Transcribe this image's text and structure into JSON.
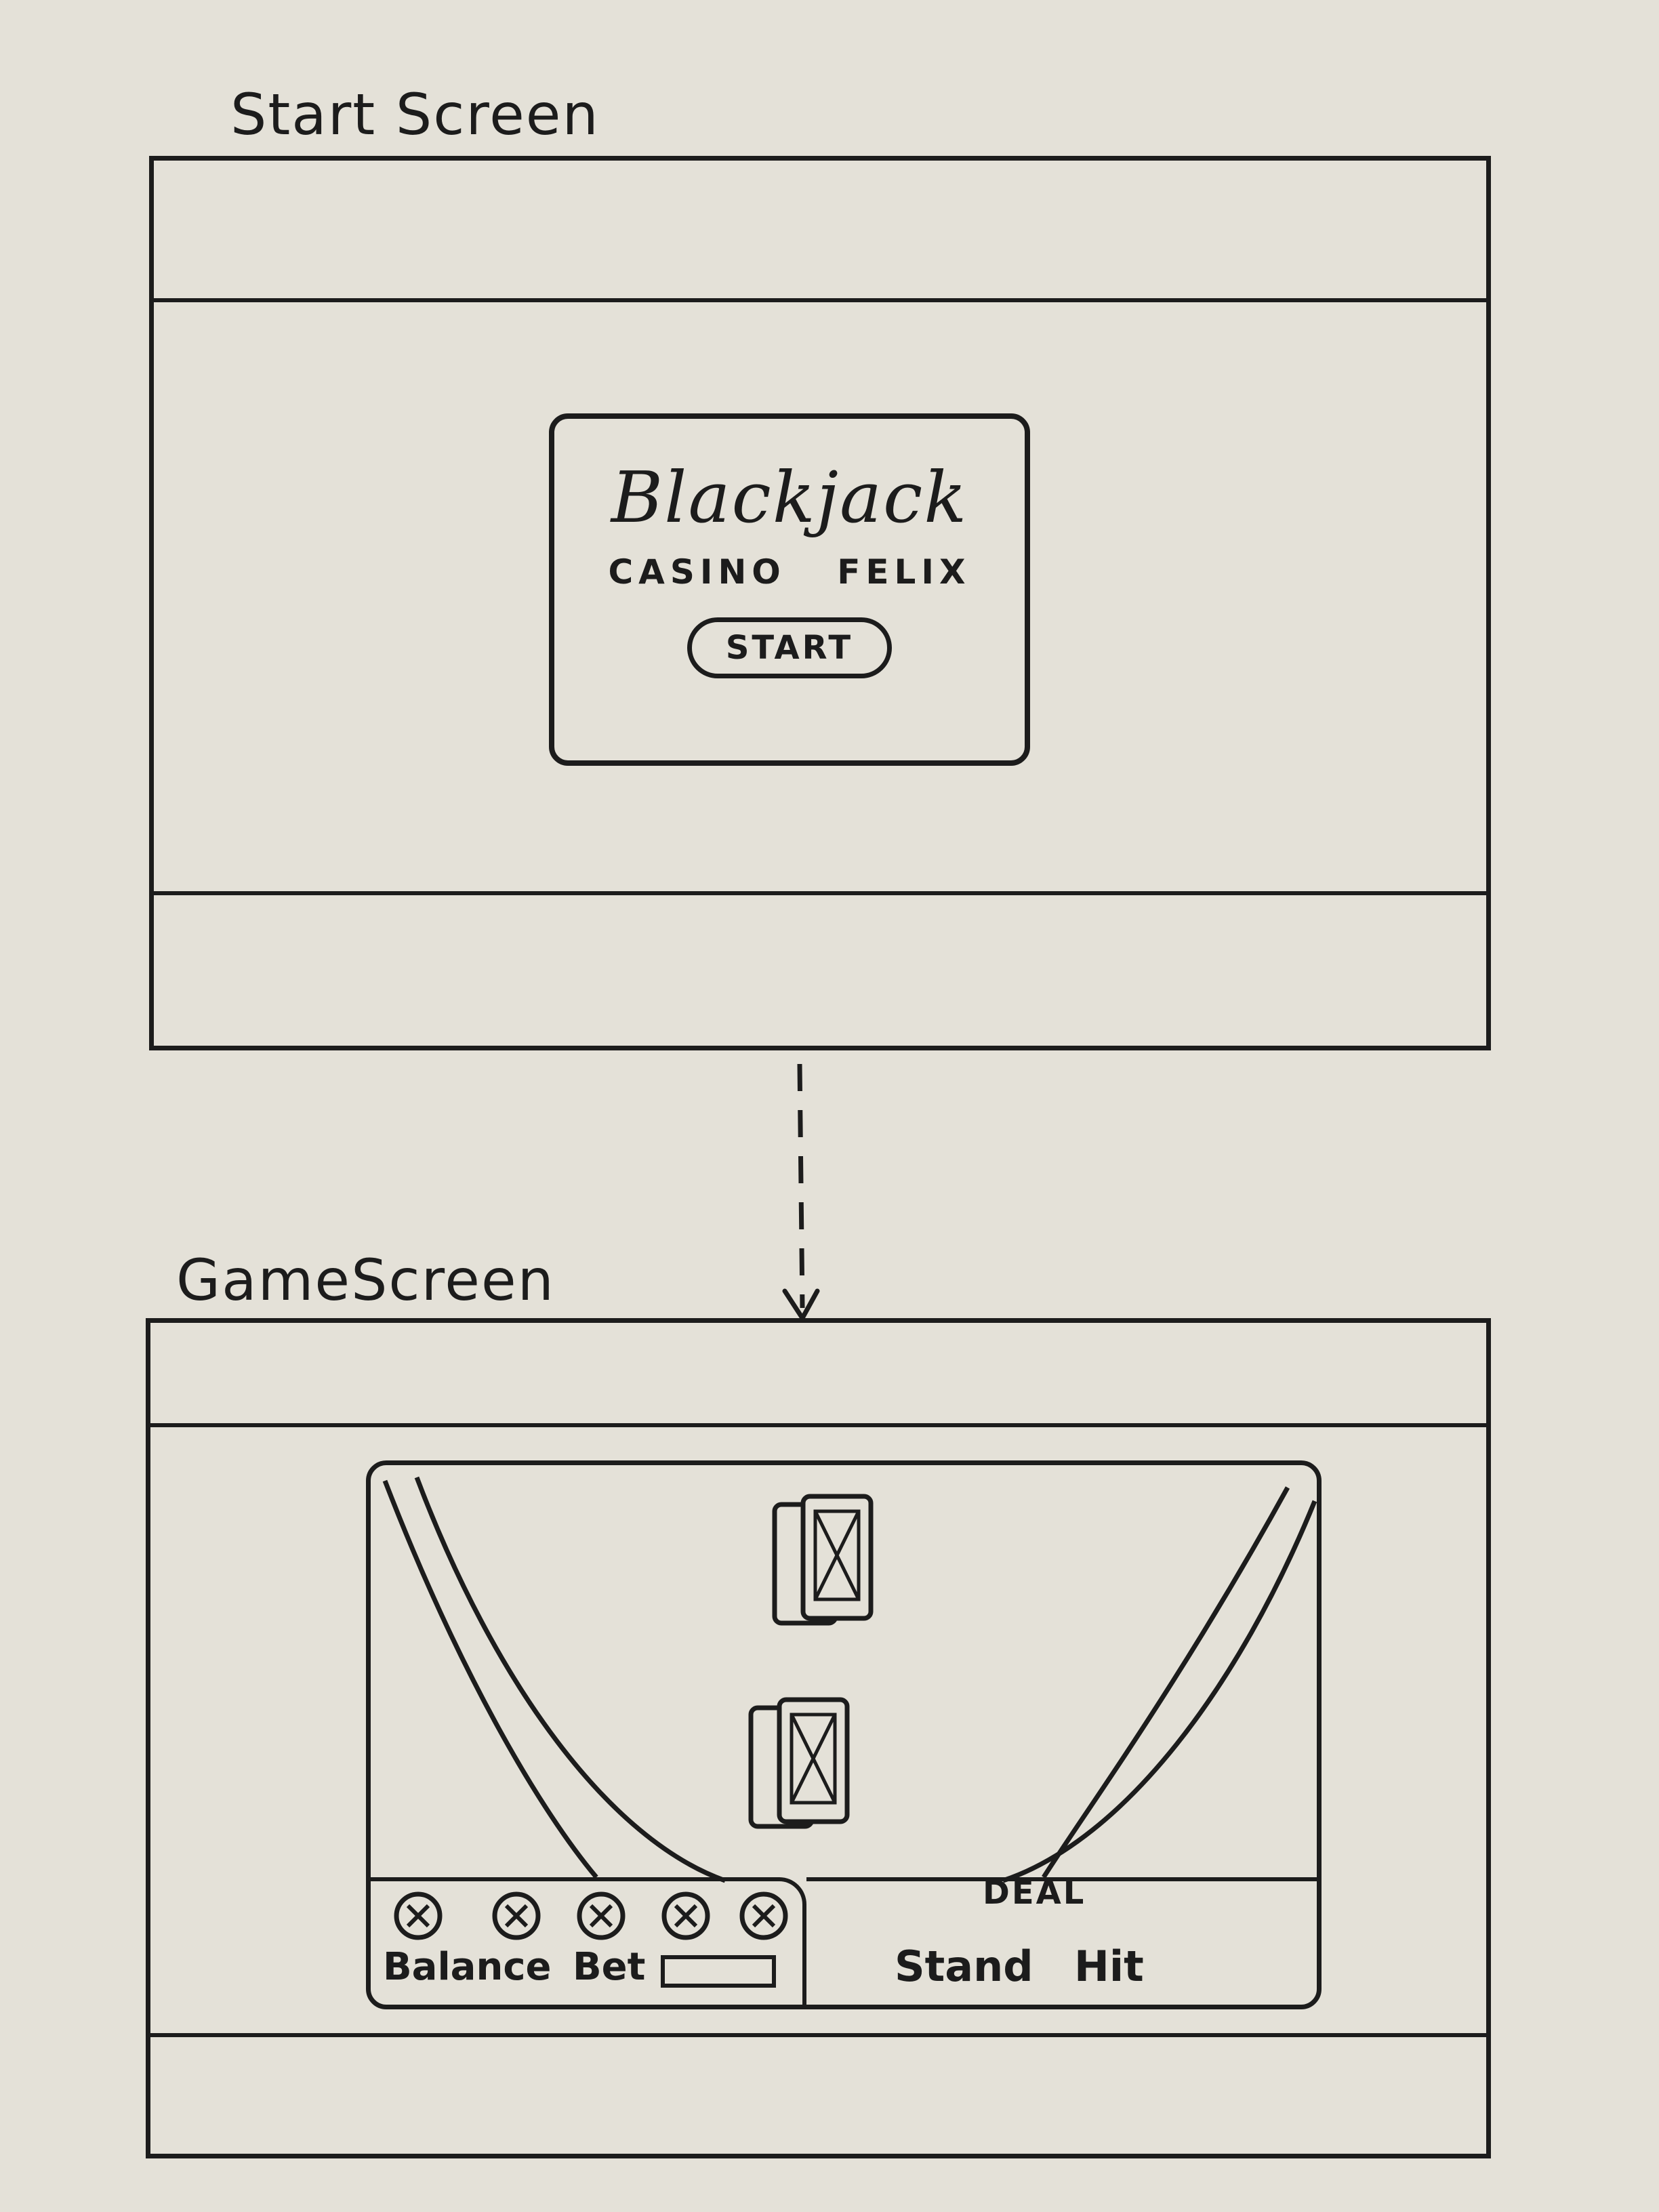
{
  "start_screen": {
    "title": "Start Screen",
    "game_name": "Blackjack",
    "casino_name": "CASINO FELIX",
    "start_label": "START"
  },
  "game_screen": {
    "title": "GameScreen",
    "controls": {
      "balance_label": "Balance",
      "bet_label": "Bet",
      "deal_label": "DEAL",
      "stand_label": "Stand",
      "hit_label": "Hit"
    },
    "chip_count": 5,
    "hands": [
      {
        "name": "dealer-hand",
        "cards": 2
      },
      {
        "name": "player-hand",
        "cards": 2
      }
    ]
  },
  "colors": {
    "paper": "#e4e1d8",
    "ink": "#1c1c1c"
  },
  "icons": {
    "chip": "circle-x-icon",
    "card": "card-back-icon",
    "arrow": "arrow-down-dashed-icon"
  }
}
